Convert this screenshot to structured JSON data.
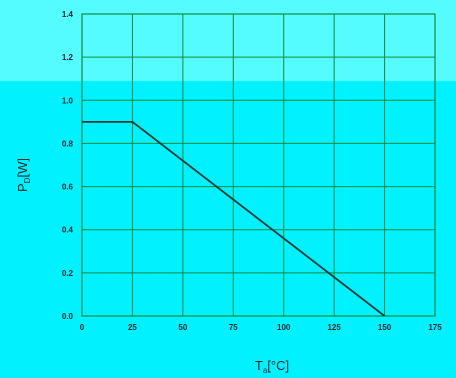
{
  "colors": {
    "page_background": "#00f1ff",
    "top_band": "#54fbff",
    "grid": "#138a3c",
    "line": "#1c3a36",
    "text": "#1c2a2a"
  },
  "chart_data": {
    "type": "line",
    "title": "",
    "xlabel": {
      "main": "T",
      "sub": "a",
      "unit": "[°C]"
    },
    "ylabel": {
      "main": "P",
      "sub": "D",
      "unit": "[W]"
    },
    "xlim": [
      0,
      175
    ],
    "ylim": [
      0,
      1.4
    ],
    "x_ticks": [
      0,
      25,
      50,
      75,
      100,
      125,
      150,
      175
    ],
    "x_tick_labels": [
      "0",
      "25",
      "50",
      "75",
      "100",
      "125",
      "150",
      "175"
    ],
    "y_ticks": [
      0,
      0.2,
      0.4,
      0.6,
      0.8,
      1.0,
      1.2,
      1.4
    ],
    "y_tick_labels": [
      "0.0",
      "0.2",
      "0.4",
      "0.6",
      "0.8",
      "1.0",
      "1.2",
      "1.4"
    ],
    "grid": true,
    "series": [
      {
        "x": [
          0,
          25,
          150
        ],
        "y": [
          0.9,
          0.9,
          0
        ]
      }
    ]
  }
}
